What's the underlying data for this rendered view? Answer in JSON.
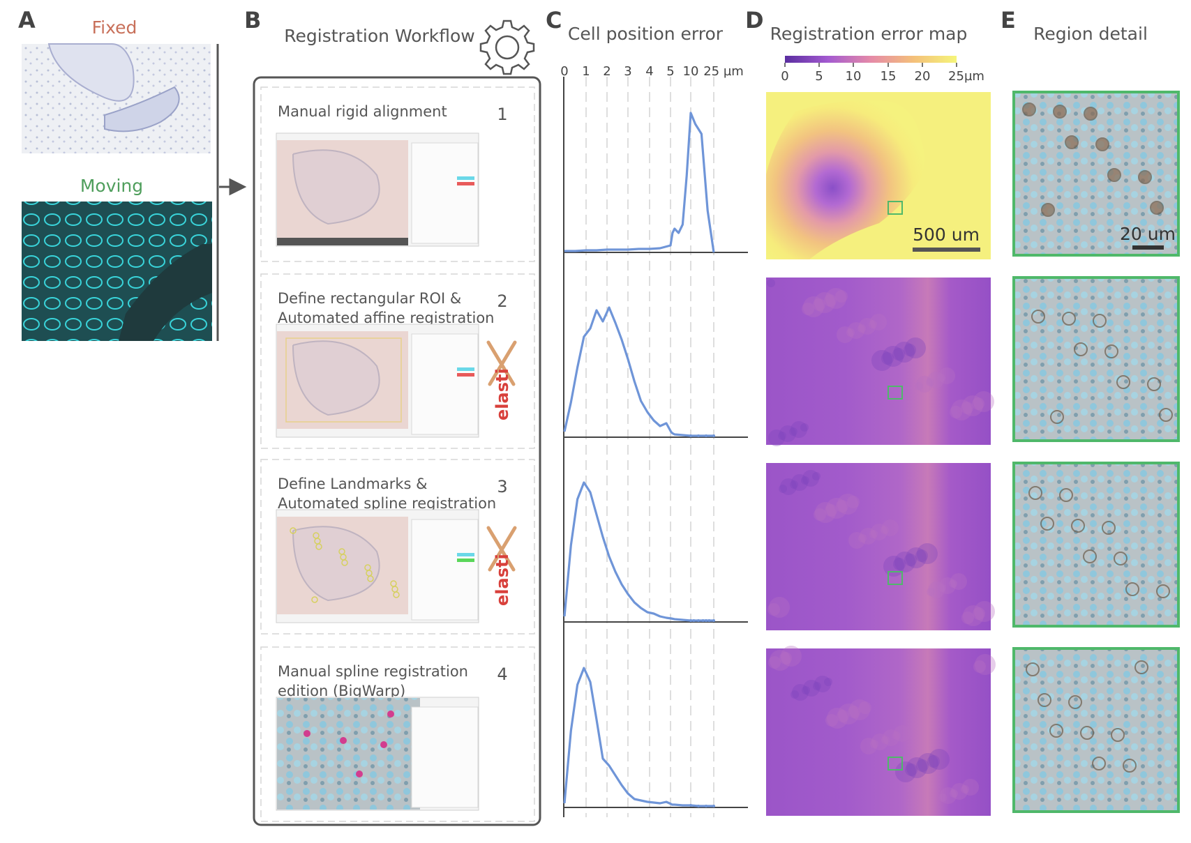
{
  "panels": {
    "a": {
      "letter": "A",
      "fixed_label": "Fixed",
      "moving_label": "Moving",
      "fixed_color": "#c8705a",
      "moving_color": "#4f9e5c"
    },
    "b": {
      "letter": "B",
      "title": "Registration Workflow",
      "icon": "gear-icon",
      "steps": [
        {
          "number": "1",
          "title_lines": [
            "Manual rigid alignment"
          ],
          "tool": ""
        },
        {
          "number": "2",
          "title_lines": [
            "Define rectangular ROI &",
            "Automated affine registration"
          ],
          "tool": "elasti"
        },
        {
          "number": "3",
          "title_lines": [
            "Define Landmarks &",
            "Automated spline registration"
          ],
          "tool": "elasti"
        },
        {
          "number": "4",
          "title_lines": [
            "Manual spline registration",
            "edition (BigWarp)"
          ],
          "tool": ""
        }
      ]
    },
    "c": {
      "letter": "C",
      "title": "Cell position error"
    },
    "d": {
      "letter": "D",
      "title": "Registration error map",
      "colorbar_ticks": [
        "0",
        "5",
        "10",
        "15",
        "20",
        "25µm"
      ],
      "scale_bar": "500 um"
    },
    "e": {
      "letter": "E",
      "title": "Region detail",
      "scale_bar": "20 um",
      "border_color": "#4fb86a"
    }
  },
  "chart_data": {
    "type": "line",
    "title": "Cell position error",
    "xlabel": "",
    "ylabel": "",
    "x_tick_labels": [
      "0",
      "1",
      "2",
      "3",
      "4",
      "5",
      "10",
      "25 µm"
    ],
    "x_tick_values": [
      0,
      1,
      2,
      3,
      4,
      5,
      10,
      25
    ],
    "x_scale": "piecewise (0-5 linear, then 10 and 25)",
    "color": "#6f95d8",
    "grid": "dashed vertical",
    "series": [
      {
        "x": [
          0,
          0.5,
          1,
          1.5,
          2,
          2.5,
          3,
          3.5,
          4,
          4.5,
          5,
          5.5,
          6,
          7,
          8,
          9,
          10,
          13,
          17,
          21,
          25
        ],
        "values": [
          0.01,
          0.01,
          0.015,
          0.015,
          0.02,
          0.02,
          0.02,
          0.025,
          0.025,
          0.03,
          0.05,
          0.14,
          0.17,
          0.14,
          0.2,
          0.55,
          1.0,
          0.92,
          0.85,
          0.3,
          0.0
        ]
      },
      {
        "x": [
          0,
          0.3,
          0.6,
          0.9,
          1.2,
          1.5,
          1.8,
          2.1,
          2.4,
          2.7,
          3.0,
          3.3,
          3.6,
          3.9,
          4.2,
          4.5,
          4.8,
          5.1,
          5.4,
          6,
          8,
          10,
          15,
          20,
          25
        ],
        "values": [
          0.04,
          0.25,
          0.5,
          0.72,
          0.78,
          0.91,
          0.83,
          0.93,
          0.82,
          0.7,
          0.56,
          0.4,
          0.26,
          0.18,
          0.12,
          0.08,
          0.1,
          0.04,
          0.03,
          0.02,
          0.015,
          0.01,
          0.01,
          0.01,
          0.01
        ]
      },
      {
        "x": [
          0,
          0.3,
          0.6,
          0.9,
          1.2,
          1.5,
          1.8,
          2.1,
          2.4,
          2.7,
          3.0,
          3.3,
          3.6,
          3.9,
          4.2,
          4.5,
          4.8,
          5.2,
          6,
          8,
          10,
          12,
          15,
          18,
          20,
          22,
          25
        ],
        "values": [
          0.04,
          0.55,
          0.88,
          1.0,
          0.93,
          0.77,
          0.61,
          0.47,
          0.36,
          0.27,
          0.2,
          0.14,
          0.1,
          0.07,
          0.06,
          0.04,
          0.03,
          0.025,
          0.02,
          0.015,
          0.01,
          0.01,
          0.01,
          0.01,
          0.01,
          0.01,
          0.01
        ]
      },
      {
        "x": [
          0,
          0.3,
          0.6,
          0.9,
          1.2,
          1.5,
          1.8,
          2.1,
          2.4,
          2.7,
          3.0,
          3.3,
          3.6,
          3.9,
          4.2,
          4.5,
          4.8,
          5.1,
          5.4,
          6,
          8,
          10,
          15,
          20,
          25
        ],
        "values": [
          0.03,
          0.55,
          0.88,
          1.0,
          0.9,
          0.63,
          0.35,
          0.3,
          0.23,
          0.16,
          0.1,
          0.06,
          0.05,
          0.04,
          0.035,
          0.03,
          0.04,
          0.025,
          0.02,
          0.02,
          0.015,
          0.015,
          0.01,
          0.01,
          0.01
        ]
      }
    ]
  }
}
